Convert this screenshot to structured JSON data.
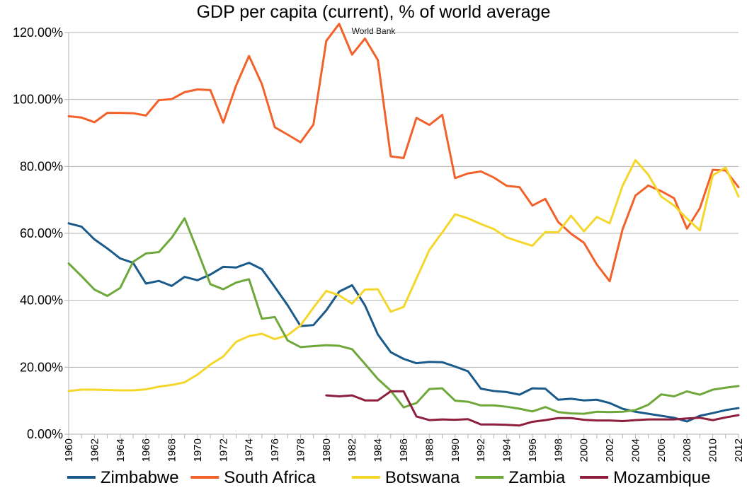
{
  "chart_data": {
    "type": "line",
    "title": "GDP per capita (current), % of world average",
    "subtitle": "World Bank",
    "xlabel": "",
    "ylabel": "",
    "ylim": [
      0,
      120
    ],
    "yticks": [
      "0.00%",
      "20.00%",
      "40.00%",
      "60.00%",
      "80.00%",
      "100.00%",
      "120.00%"
    ],
    "xticks": [
      "1960",
      "1962",
      "1964",
      "1966",
      "1968",
      "1970",
      "1972",
      "1974",
      "1976",
      "1978",
      "1980",
      "1982",
      "1984",
      "1986",
      "1988",
      "1990",
      "1992",
      "1994",
      "1996",
      "1998",
      "2000",
      "2002",
      "2004",
      "2006",
      "2008",
      "2010",
      "2012"
    ],
    "x_start": 1960,
    "x_end": 2012,
    "grid": "horizontal",
    "legend_position": "bottom",
    "series": [
      {
        "name": "Zimbabwe",
        "color": "#1a5a8a",
        "x_start": 1960,
        "values": [
          63.0,
          62.0,
          58.2,
          55.5,
          52.5,
          51.2,
          45.0,
          45.8,
          44.3,
          47.0,
          46.0,
          47.7,
          50.0,
          49.8,
          51.2,
          49.3,
          44.0,
          38.5,
          32.3,
          32.6,
          37.0,
          42.6,
          44.5,
          38.5,
          29.8,
          24.5,
          22.5,
          21.2,
          21.6,
          21.5,
          20.2,
          18.8,
          13.6,
          12.9,
          12.6,
          11.8,
          13.7,
          13.6,
          10.3,
          10.6,
          10.1,
          10.3,
          9.3,
          7.6,
          6.7,
          6.1,
          5.5,
          4.9,
          3.8,
          5.5,
          6.3,
          7.2,
          7.8
        ]
      },
      {
        "name": "South Africa",
        "color": "#f2612a",
        "x_start": 1960,
        "values": [
          95.0,
          94.6,
          93.2,
          96.0,
          96.0,
          95.9,
          95.2,
          99.8,
          100.1,
          102.2,
          103.0,
          102.8,
          93.1,
          104.2,
          113.0,
          104.6,
          91.7,
          89.5,
          87.2,
          92.5,
          117.5,
          122.6,
          113.4,
          118.2,
          111.8,
          83.0,
          82.5,
          94.5,
          92.4,
          95.4,
          76.5,
          77.9,
          78.5,
          76.7,
          74.2,
          73.8,
          68.3,
          70.3,
          63.4,
          59.9,
          57.2,
          50.7,
          45.7,
          61.2,
          71.3,
          74.3,
          72.6,
          70.5,
          61.4,
          67.5,
          79.0,
          78.8,
          73.8
        ]
      },
      {
        "name": "Botswana",
        "color": "#f5d62a",
        "x_start": 1960,
        "values": [
          12.9,
          13.3,
          13.3,
          13.2,
          13.1,
          13.1,
          13.4,
          14.2,
          14.7,
          15.5,
          17.8,
          20.8,
          23.2,
          27.6,
          29.3,
          30.0,
          28.4,
          29.6,
          32.5,
          37.8,
          42.8,
          41.5,
          39.0,
          43.2,
          43.3,
          36.6,
          38.0,
          46.5,
          55.0,
          60.3,
          65.7,
          64.5,
          62.8,
          61.3,
          58.8,
          57.5,
          56.3,
          60.4,
          60.3,
          65.3,
          60.6,
          64.9,
          63.0,
          74.2,
          81.9,
          77.5,
          71.0,
          68.3,
          64.4,
          60.9,
          77.3,
          79.7,
          71.0
        ]
      },
      {
        "name": "Zambia",
        "color": "#6ea73a",
        "x_start": 1960,
        "values": [
          51.0,
          47.2,
          43.2,
          41.3,
          43.7,
          51.5,
          54.0,
          54.4,
          58.7,
          64.5,
          54.8,
          44.8,
          43.3,
          45.3,
          46.3,
          34.5,
          35.0,
          28.0,
          26.0,
          26.3,
          26.6,
          26.4,
          25.4,
          21.0,
          16.5,
          13.0,
          8.0,
          9.3,
          13.5,
          13.7,
          10.0,
          9.7,
          8.6,
          8.6,
          8.2,
          7.6,
          6.8,
          8.1,
          6.6,
          6.2,
          6.1,
          6.7,
          6.6,
          6.7,
          7.2,
          8.8,
          11.9,
          11.3,
          12.8,
          11.8,
          13.3,
          13.9,
          14.4
        ]
      },
      {
        "name": "Mozambique",
        "color": "#8e1e3d",
        "x_start": 1980,
        "values": [
          11.6,
          11.3,
          11.6,
          10.1,
          10.1,
          12.8,
          12.8,
          5.3,
          4.2,
          4.4,
          4.3,
          4.5,
          2.9,
          2.9,
          2.8,
          2.6,
          3.7,
          4.2,
          4.8,
          4.8,
          4.3,
          4.1,
          4.1,
          3.9,
          4.2,
          4.4,
          4.4,
          4.4,
          4.7,
          4.9,
          4.2,
          5.0,
          5.7
        ]
      }
    ]
  }
}
